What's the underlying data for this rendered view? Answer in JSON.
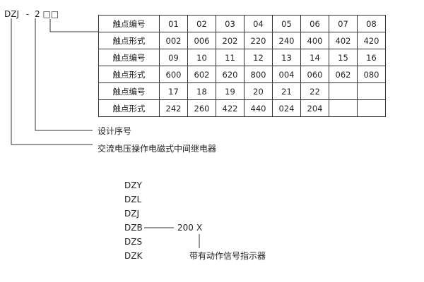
{
  "model": {
    "prefix": "DZJ",
    "dash": "-",
    "digit": "2",
    "boxes": "□□"
  },
  "table": {
    "rows": [
      {
        "label": "触点编号",
        "values": [
          "01",
          "02",
          "03",
          "04",
          "05",
          "06",
          "07",
          "08"
        ]
      },
      {
        "label": "触点形式",
        "values": [
          "002",
          "006",
          "202",
          "220",
          "240",
          "400",
          "402",
          "420"
        ]
      },
      {
        "label": "触点编号",
        "values": [
          "09",
          "10",
          "11",
          "12",
          "13",
          "14",
          "15",
          "16"
        ]
      },
      {
        "label": "触点形式",
        "values": [
          "600",
          "602",
          "620",
          "800",
          "004",
          "060",
          "062",
          "080"
        ]
      },
      {
        "label": "触点编号",
        "values": [
          "17",
          "18",
          "19",
          "20",
          "21",
          "22",
          "",
          ""
        ]
      },
      {
        "label": "触点形式",
        "values": [
          "242",
          "260",
          "422",
          "440",
          "024",
          "204",
          "",
          ""
        ]
      }
    ]
  },
  "labels": {
    "design_no": "设计序号",
    "relay_type": "交流电压操作电磁式中间继电器"
  },
  "series": [
    "DZY",
    "DZL",
    "DZJ",
    "DZB",
    "DZS",
    "DZK"
  ],
  "suffix": {
    "number": "200",
    "letter": "X",
    "note": "带有动作信号指示器"
  }
}
